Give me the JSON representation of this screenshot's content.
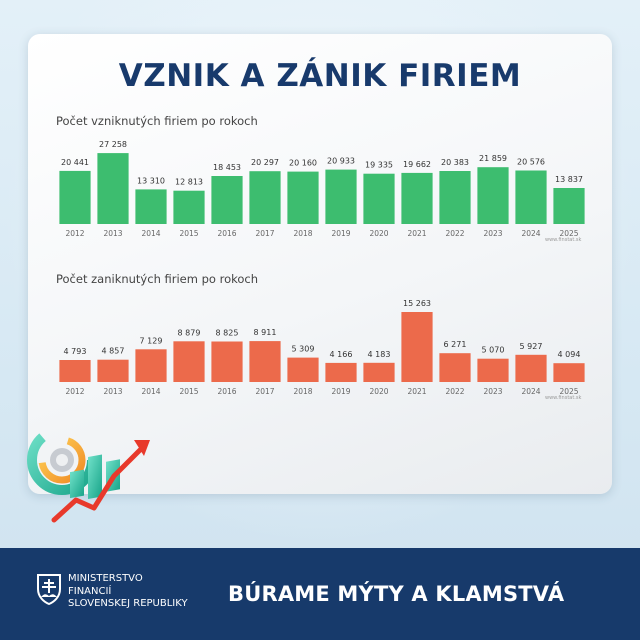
{
  "title": "VZNIK A ZÁNIK FIRIEM",
  "chart_data": [
    {
      "type": "bar",
      "title": "Počet vzniknutých firiem po rokoch",
      "categories": [
        "2012",
        "2013",
        "2014",
        "2015",
        "2016",
        "2017",
        "2018",
        "2019",
        "2020",
        "2021",
        "2022",
        "2023",
        "2024",
        "2025"
      ],
      "values": [
        20441,
        27258,
        13310,
        12813,
        18453,
        20297,
        20160,
        20933,
        19335,
        19662,
        20383,
        21859,
        20576,
        13837
      ],
      "value_labels": [
        "20 441",
        "27 258",
        "13 310",
        "12 813",
        "18 453",
        "20 297",
        "20 160",
        "20 933",
        "19 335",
        "19 662",
        "20 383",
        "21 859",
        "20 576",
        "13 837"
      ],
      "color": "#3dbd6f",
      "ylim": [
        0,
        30000
      ],
      "grid": false,
      "source": "www.finstat.sk"
    },
    {
      "type": "bar",
      "title": "Počet zaniknutých firiem po rokoch",
      "categories": [
        "2012",
        "2013",
        "2014",
        "2015",
        "2016",
        "2017",
        "2018",
        "2019",
        "2020",
        "2021",
        "2022",
        "2023",
        "2024",
        "2025"
      ],
      "values": [
        4793,
        4857,
        7129,
        8879,
        8825,
        8911,
        5309,
        4166,
        4183,
        15263,
        6271,
        5070,
        5927,
        4094
      ],
      "value_labels": [
        "4 793",
        "4 857",
        "7 129",
        "8 879",
        "8 825",
        "8 911",
        "5 309",
        "4 166",
        "4 183",
        "15 263",
        "6 271",
        "5 070",
        "5 927",
        "4 094"
      ],
      "color": "#ec6a4b",
      "ylim": [
        0,
        17000
      ],
      "grid": false,
      "source": "www.finstat.sk"
    }
  ],
  "footer": {
    "ministry_lines": [
      "MINISTERSTVO",
      "FINANCIÍ",
      "SLOVENSKEJ REPUBLIKY"
    ],
    "slogan": "BÚRAME MÝTY A KLAMSTVÁ"
  },
  "colors": {
    "title": "#183a6c",
    "footer_bg": "#173a6b"
  },
  "icons": {
    "illustration": "chart-gear-arrow-illustration",
    "crest": "slovak-crest-icon"
  }
}
